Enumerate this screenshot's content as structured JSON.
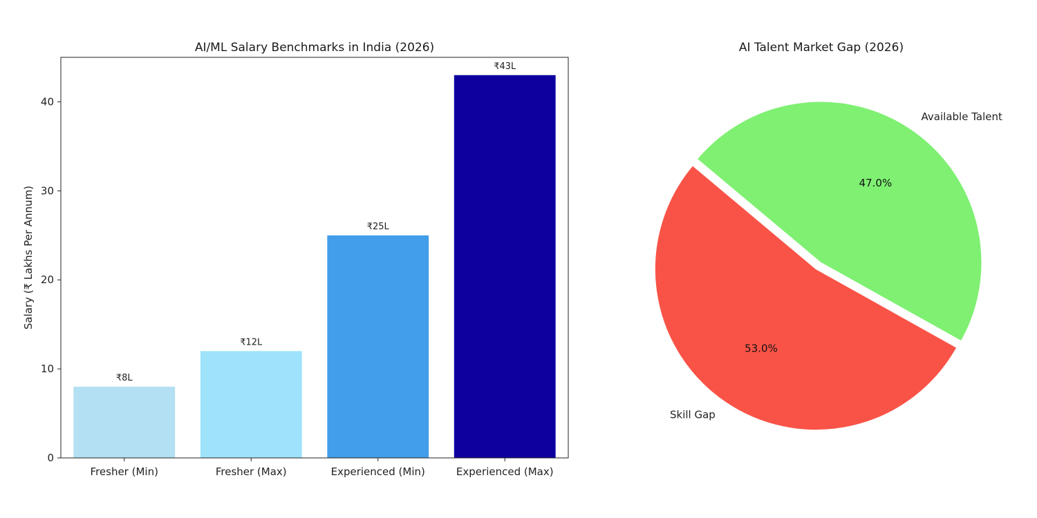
{
  "chart_data": [
    {
      "type": "bar",
      "title": "AI/ML Salary Benchmarks in India (2026)",
      "xlabel": "",
      "ylabel": "Salary (₹ Lakhs Per Annum)",
      "categories": [
        "Fresher (Min)",
        "Fresher (Max)",
        "Experienced (Min)",
        "Experienced (Max)"
      ],
      "values": [
        8,
        12,
        25,
        43
      ],
      "data_labels": [
        "₹8L",
        "₹12L",
        "₹25L",
        "₹43L"
      ],
      "colors": [
        "#b3e0f2",
        "#9ee3fb",
        "#429dea",
        "#0d009e"
      ],
      "ylim": [
        0,
        45
      ],
      "yticks": [
        0,
        10,
        20,
        30,
        40
      ],
      "grid": false,
      "legend": "none"
    },
    {
      "type": "pie",
      "title": "AI Talent Market Gap (2026)",
      "slices": [
        {
          "label": "Skill Gap",
          "value": 53.0,
          "pct_label": "53.0%",
          "color": "#f95347",
          "exploded": true
        },
        {
          "label": "Available Talent",
          "value": 47.0,
          "pct_label": "47.0%",
          "color": "#7ff072",
          "exploded": false
        }
      ],
      "start_angle_deg": 140,
      "legend": "none"
    }
  ]
}
